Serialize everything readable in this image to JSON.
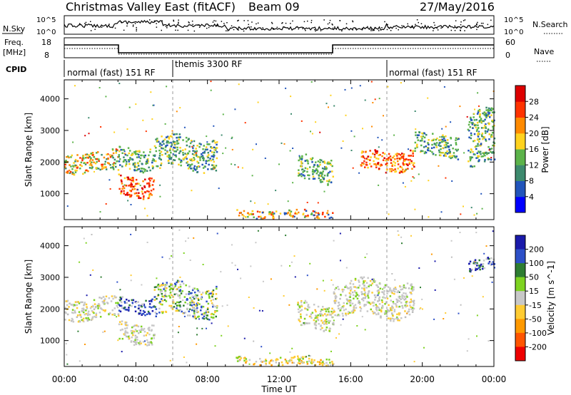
{
  "header": {
    "station": "Christmas Valley East (fitACF)",
    "beam": "Beam 09",
    "date": "27/May/2016"
  },
  "top_panels": {
    "nsky_label": "N.Sky",
    "nsearch_label": "N.Search",
    "noise_ticks_left": [
      "10^5",
      "10^0"
    ],
    "noise_ticks_right": [
      "10^5",
      "10^0"
    ],
    "freq_label": [
      "Freq.",
      "[MHz]"
    ],
    "freq_ticks": [
      "18",
      "8"
    ],
    "nave_label": "Nave",
    "nave_ticks": [
      "60",
      "0"
    ],
    "cpid_label": "CPID",
    "cpid_segments": [
      {
        "label": "normal (fast) 151 RF",
        "start_hour": 0,
        "end_hour": 6
      },
      {
        "label": "themis 3300 RF",
        "start_hour": 6,
        "end_hour": 18
      },
      {
        "label": "normal (fast) 151 RF",
        "start_hour": 18,
        "end_hour": 24
      }
    ]
  },
  "axes": {
    "ylabel": "Slant Range [km]",
    "yticks": [
      "1000",
      "2000",
      "3000",
      "4000"
    ],
    "xlabel": "Time UT",
    "xticks": [
      "00:00",
      "04:00",
      "08:00",
      "12:00",
      "16:00",
      "20:00",
      "00:00"
    ]
  },
  "chart_data": [
    {
      "type": "heatmap",
      "title": "",
      "xlabel": "Time UT",
      "ylabel": "Slant Range [km]",
      "xlim_hours": [
        0,
        24
      ],
      "ylim_km": [
        180,
        4600
      ],
      "colorbar": {
        "label": "Power [dB]",
        "ticks": [
          "4",
          "8",
          "12",
          "16",
          "20",
          "24",
          "28"
        ],
        "colors": [
          "#0000ff",
          "#2255bb",
          "#3d8a6e",
          "#5cb34a",
          "#ffd21e",
          "#ff8a00",
          "#ff3300",
          "#dd0000"
        ]
      },
      "scatter_bands": [
        {
          "hours": [
            0.0,
            3.0
          ],
          "range_km": [
            1700,
            2350
          ],
          "level": "medium-high"
        },
        {
          "hours": [
            3.0,
            5.0
          ],
          "range_km": [
            950,
            1600
          ],
          "level": "high"
        },
        {
          "hours": [
            3.0,
            5.0
          ],
          "range_km": [
            1800,
            2500
          ],
          "level": "medium"
        },
        {
          "hours": [
            5.0,
            8.5
          ],
          "range_km": [
            1800,
            2800
          ],
          "level": "medium-low"
        },
        {
          "hours": [
            13.0,
            15.0
          ],
          "range_km": [
            1400,
            2200
          ],
          "level": "medium"
        },
        {
          "hours": [
            16.5,
            19.5
          ],
          "range_km": [
            1750,
            2400
          ],
          "level": "high"
        },
        {
          "hours": [
            19.5,
            22.0
          ],
          "range_km": [
            2200,
            2900
          ],
          "level": "medium"
        },
        {
          "hours": [
            22.5,
            24.0
          ],
          "range_km": [
            1800,
            3500
          ],
          "level": "medium"
        },
        {
          "hours": [
            9.5,
            15.0
          ],
          "range_km": [
            250,
            500
          ],
          "level": "ground-scatter"
        }
      ]
    },
    {
      "type": "heatmap",
      "title": "",
      "xlabel": "Time UT",
      "ylabel": "Slant Range [km]",
      "xlim_hours": [
        0,
        24
      ],
      "ylim_km": [
        180,
        4600
      ],
      "colorbar": {
        "label": "Velocity [m s^-1]",
        "ticks": [
          "200",
          "100",
          "50",
          "15",
          "-15",
          "-50",
          "-100",
          "-200"
        ],
        "colors": [
          "#1a1aaa",
          "#2d50c8",
          "#2e7d32",
          "#7ed321",
          "#c8c8c8",
          "#ffcc33",
          "#ff9900",
          "#ff5500",
          "#ee0000"
        ]
      },
      "scatter_bands": [
        {
          "hours": [
            0.0,
            3.0
          ],
          "range_km": [
            1700,
            2350
          ],
          "level": "ground"
        },
        {
          "hours": [
            3.0,
            5.0
          ],
          "range_km": [
            950,
            1600
          ],
          "level": "ground"
        },
        {
          "hours": [
            3.0,
            5.0
          ],
          "range_km": [
            1900,
            2400
          ],
          "level": "positive"
        },
        {
          "hours": [
            5.0,
            8.5
          ],
          "range_km": [
            1800,
            2800
          ],
          "level": "mixed-positive"
        },
        {
          "hours": [
            13.0,
            15.0
          ],
          "range_km": [
            1400,
            2200
          ],
          "level": "ground"
        },
        {
          "hours": [
            15.0,
            19.5
          ],
          "range_km": [
            1800,
            2900
          ],
          "level": "ground"
        },
        {
          "hours": [
            22.5,
            24.0
          ],
          "range_km": [
            3200,
            3600
          ],
          "level": "positive"
        },
        {
          "hours": [
            9.5,
            15.0
          ],
          "range_km": [
            250,
            500
          ],
          "level": "negative-small"
        }
      ]
    }
  ]
}
